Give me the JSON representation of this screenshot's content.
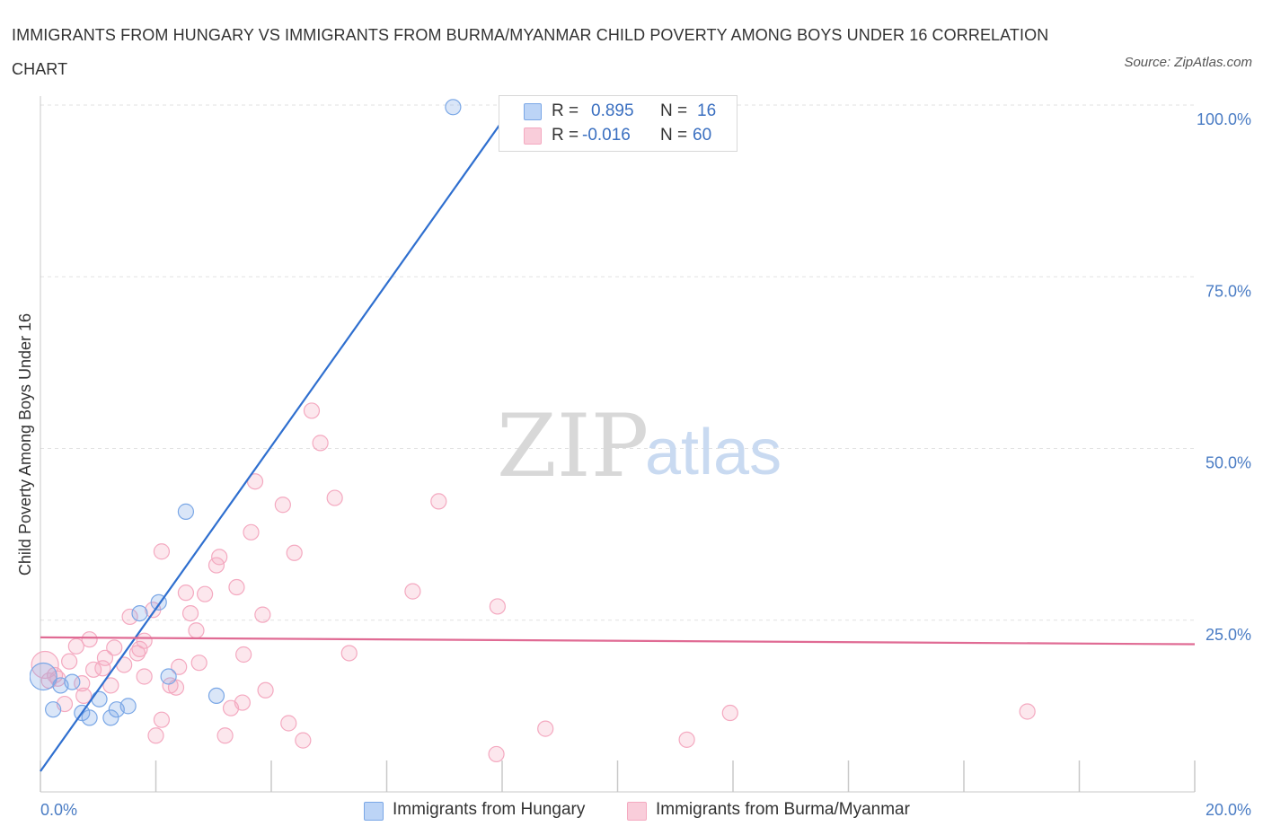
{
  "chart_data": {
    "type": "scatter",
    "title": "IMMIGRANTS FROM HUNGARY VS IMMIGRANTS FROM BURMA/MYANMAR CHILD POVERTY AMONG BOYS UNDER 16 CORRELATION CHART",
    "source": "Source: ZipAtlas.com",
    "xlabel": "",
    "ylabel": "Child Poverty Among Boys Under 16",
    "xlim": [
      0,
      20
    ],
    "ylim": [
      0,
      100
    ],
    "x_tick_labels": [
      "0.0%",
      "20.0%"
    ],
    "y_ticks": [
      25,
      50,
      75,
      100
    ],
    "y_tick_labels": [
      "25.0%",
      "50.0%",
      "75.0%",
      "100.0%"
    ],
    "watermark": {
      "zip": "ZIP",
      "atlas": "atlas"
    },
    "legend": {
      "r_label": "R =",
      "n_label": "N =",
      "entries": [
        {
          "r": "0.895",
          "n": "16"
        },
        {
          "r": "-0.016",
          "n": "60"
        }
      ]
    },
    "series": [
      {
        "name": "Immigrants from Hungary",
        "color": "#7aa7e6",
        "line_color": "#2f6fcf",
        "trend": {
          "x": [
            0.0,
            8.2
          ],
          "y": [
            3.0,
            100.0
          ]
        },
        "points": [
          [
            7.15,
            99.7
          ],
          [
            2.52,
            40.8
          ],
          [
            2.05,
            27.6
          ],
          [
            1.72,
            26.0
          ],
          [
            2.22,
            16.8
          ],
          [
            3.05,
            14.0
          ],
          [
            0.55,
            16.0
          ],
          [
            0.35,
            15.5
          ],
          [
            1.02,
            13.5
          ],
          [
            0.22,
            12.0
          ],
          [
            1.52,
            12.5
          ],
          [
            1.32,
            12.0
          ],
          [
            0.72,
            11.5
          ],
          [
            0.85,
            10.8
          ],
          [
            1.22,
            10.8
          ],
          [
            0.05,
            16.8
          ]
        ]
      },
      {
        "name": "Immigrants from Burma/Myanmar",
        "color": "#f4a9c0",
        "line_color": "#e06b94",
        "trend": {
          "x": [
            0.0,
            20.0
          ],
          "y": [
            22.5,
            21.5
          ]
        },
        "points": [
          [
            4.7,
            55.5
          ],
          [
            4.85,
            50.8
          ],
          [
            3.72,
            45.2
          ],
          [
            5.1,
            42.8
          ],
          [
            6.9,
            42.3
          ],
          [
            4.2,
            41.8
          ],
          [
            3.65,
            37.8
          ],
          [
            2.1,
            35.0
          ],
          [
            4.4,
            34.8
          ],
          [
            3.1,
            34.2
          ],
          [
            3.05,
            33.0
          ],
          [
            3.4,
            29.8
          ],
          [
            6.45,
            29.2
          ],
          [
            2.52,
            29.0
          ],
          [
            2.85,
            28.8
          ],
          [
            7.92,
            27.0
          ],
          [
            1.95,
            26.5
          ],
          [
            2.6,
            26.0
          ],
          [
            3.85,
            25.8
          ],
          [
            1.55,
            25.5
          ],
          [
            2.7,
            23.5
          ],
          [
            0.85,
            22.2
          ],
          [
            1.8,
            22.0
          ],
          [
            0.62,
            21.2
          ],
          [
            1.28,
            21.0
          ],
          [
            1.72,
            20.8
          ],
          [
            1.68,
            20.2
          ],
          [
            3.52,
            20.0
          ],
          [
            5.35,
            20.2
          ],
          [
            1.12,
            19.5
          ],
          [
            0.5,
            19.0
          ],
          [
            2.75,
            18.8
          ],
          [
            1.45,
            18.5
          ],
          [
            2.4,
            18.2
          ],
          [
            0.92,
            17.8
          ],
          [
            1.08,
            18.0
          ],
          [
            1.8,
            16.8
          ],
          [
            0.3,
            16.5
          ],
          [
            0.15,
            16.2
          ],
          [
            0.72,
            15.8
          ],
          [
            1.22,
            15.5
          ],
          [
            2.25,
            15.5
          ],
          [
            2.35,
            15.2
          ],
          [
            3.9,
            14.8
          ],
          [
            0.75,
            14.0
          ],
          [
            0.42,
            12.8
          ],
          [
            3.5,
            13.0
          ],
          [
            3.3,
            12.2
          ],
          [
            2.1,
            10.5
          ],
          [
            4.3,
            10.0
          ],
          [
            11.95,
            11.5
          ],
          [
            17.1,
            11.7
          ],
          [
            8.75,
            9.2
          ],
          [
            2.0,
            8.2
          ],
          [
            3.2,
            8.2
          ],
          [
            4.55,
            7.5
          ],
          [
            11.2,
            7.6
          ],
          [
            7.9,
            5.5
          ],
          [
            0.08,
            18.5
          ],
          [
            0.25,
            17.0
          ]
        ]
      }
    ]
  }
}
